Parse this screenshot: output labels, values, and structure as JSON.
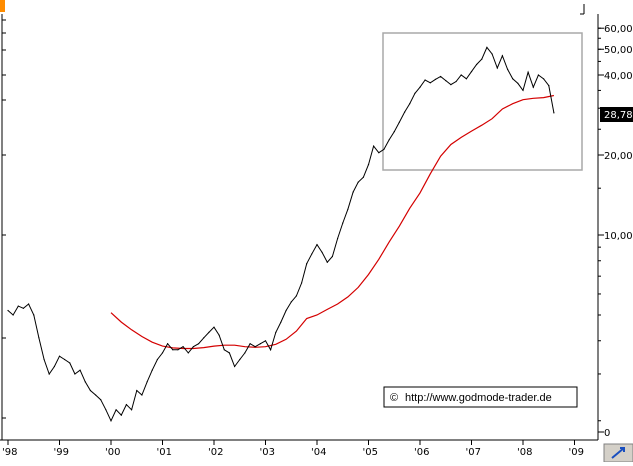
{
  "chart_data": {
    "type": "line",
    "title": "",
    "xlabel": "",
    "ylabel": "",
    "y_scale": "log",
    "y_tick_labels": [
      "60,00",
      "50,00",
      "40,00",
      "20,00",
      "10,00",
      "0"
    ],
    "x_tick_labels": [
      "'98",
      "'99",
      "'00",
      "'01",
      "'02",
      "'03",
      "'04",
      "'05",
      "'06",
      "'07",
      "'08",
      "'09"
    ],
    "last_price_label": "28,78",
    "watermark": "http://www.godmode-trader.de",
    "watermark_symbol": "©",
    "grid": false,
    "colors": {
      "price": "#000000",
      "moving_average": "#d40000",
      "price_tag_bg": "#000000",
      "highlight_box": "#a8a8a8",
      "corner_marker": "#ff8c00",
      "axis": "#000000"
    },
    "series": [
      {
        "role": "price",
        "x": [
          1998.0,
          1998.1,
          1998.2,
          1998.3,
          1998.4,
          1998.5,
          1998.6,
          1998.7,
          1998.8,
          1998.9,
          1999.0,
          1999.1,
          1999.2,
          1999.3,
          1999.4,
          1999.5,
          1999.6,
          1999.7,
          1999.8,
          1999.9,
          2000.0,
          2000.1,
          2000.2,
          2000.3,
          2000.4,
          2000.5,
          2000.6,
          2000.7,
          2000.8,
          2000.9,
          2001.0,
          2001.1,
          2001.2,
          2001.3,
          2001.4,
          2001.5,
          2001.6,
          2001.7,
          2001.8,
          2001.9,
          2002.0,
          2002.1,
          2002.2,
          2002.3,
          2002.4,
          2002.5,
          2002.6,
          2002.7,
          2002.8,
          2002.9,
          2003.0,
          2003.1,
          2003.2,
          2003.3,
          2003.4,
          2003.5,
          2003.6,
          2003.7,
          2003.8,
          2003.9,
          2004.0,
          2004.1,
          2004.2,
          2004.3,
          2004.4,
          2004.5,
          2004.6,
          2004.7,
          2004.8,
          2004.9,
          2005.0,
          2005.1,
          2005.2,
          2005.3,
          2005.4,
          2005.5,
          2005.6,
          2005.7,
          2005.8,
          2005.9,
          2006.0,
          2006.1,
          2006.2,
          2006.3,
          2006.4,
          2006.5,
          2006.6,
          2006.7,
          2006.8,
          2006.9,
          2007.0,
          2007.1,
          2007.2,
          2007.3,
          2007.4,
          2007.5,
          2007.6,
          2007.7,
          2007.8,
          2007.9,
          2008.0,
          2008.1,
          2008.2,
          2008.3,
          2008.4,
          2008.5,
          2008.6
        ],
        "values": [
          5.2,
          5.0,
          5.4,
          5.3,
          5.5,
          5.0,
          4.1,
          3.4,
          3.0,
          3.2,
          3.5,
          3.4,
          3.3,
          3.0,
          3.1,
          2.8,
          2.6,
          2.5,
          2.4,
          2.2,
          2.0,
          2.2,
          2.1,
          2.3,
          2.2,
          2.6,
          2.5,
          2.8,
          3.1,
          3.4,
          3.6,
          3.9,
          3.7,
          3.7,
          3.8,
          3.6,
          3.8,
          3.9,
          4.1,
          4.3,
          4.5,
          4.2,
          3.7,
          3.6,
          3.2,
          3.4,
          3.6,
          3.9,
          3.8,
          3.9,
          4.0,
          3.7,
          4.3,
          4.7,
          5.2,
          5.6,
          5.9,
          6.6,
          7.8,
          8.5,
          9.2,
          8.6,
          7.9,
          8.3,
          9.7,
          11.1,
          12.5,
          14.5,
          15.8,
          16.5,
          18.4,
          21.6,
          20.4,
          21.0,
          22.8,
          24.5,
          26.6,
          29.0,
          31.2,
          34.1,
          36.0,
          38.3,
          37.4,
          38.5,
          39.5,
          38.1,
          36.8,
          37.8,
          40.0,
          38.7,
          41.2,
          43.8,
          45.9,
          50.8,
          48.0,
          42.5,
          47.3,
          42.0,
          38.7,
          37.2,
          35.0,
          41.0,
          36.0,
          40.0,
          38.7,
          36.5,
          28.8
        ]
      },
      {
        "role": "moving_average",
        "x": [
          2000.0,
          2000.2,
          2000.4,
          2000.6,
          2000.8,
          2001.0,
          2001.2,
          2001.4,
          2001.6,
          2001.8,
          2002.0,
          2002.2,
          2002.4,
          2002.6,
          2002.8,
          2003.0,
          2003.2,
          2003.4,
          2003.6,
          2003.8,
          2004.0,
          2004.2,
          2004.4,
          2004.6,
          2004.8,
          2005.0,
          2005.2,
          2005.4,
          2005.6,
          2005.8,
          2006.0,
          2006.2,
          2006.4,
          2006.6,
          2006.8,
          2007.0,
          2007.2,
          2007.4,
          2007.6,
          2007.8,
          2008.0,
          2008.2,
          2008.4,
          2008.6
        ],
        "values": [
          5.1,
          4.7,
          4.4,
          4.15,
          3.95,
          3.82,
          3.76,
          3.74,
          3.74,
          3.77,
          3.82,
          3.85,
          3.85,
          3.8,
          3.78,
          3.8,
          3.88,
          4.05,
          4.35,
          4.85,
          5.0,
          5.25,
          5.5,
          5.85,
          6.35,
          7.1,
          8.1,
          9.4,
          10.8,
          12.6,
          14.4,
          17.0,
          19.8,
          21.9,
          23.3,
          24.6,
          25.9,
          27.4,
          29.8,
          31.2,
          32.3,
          32.7,
          32.9,
          33.5
        ]
      }
    ]
  }
}
